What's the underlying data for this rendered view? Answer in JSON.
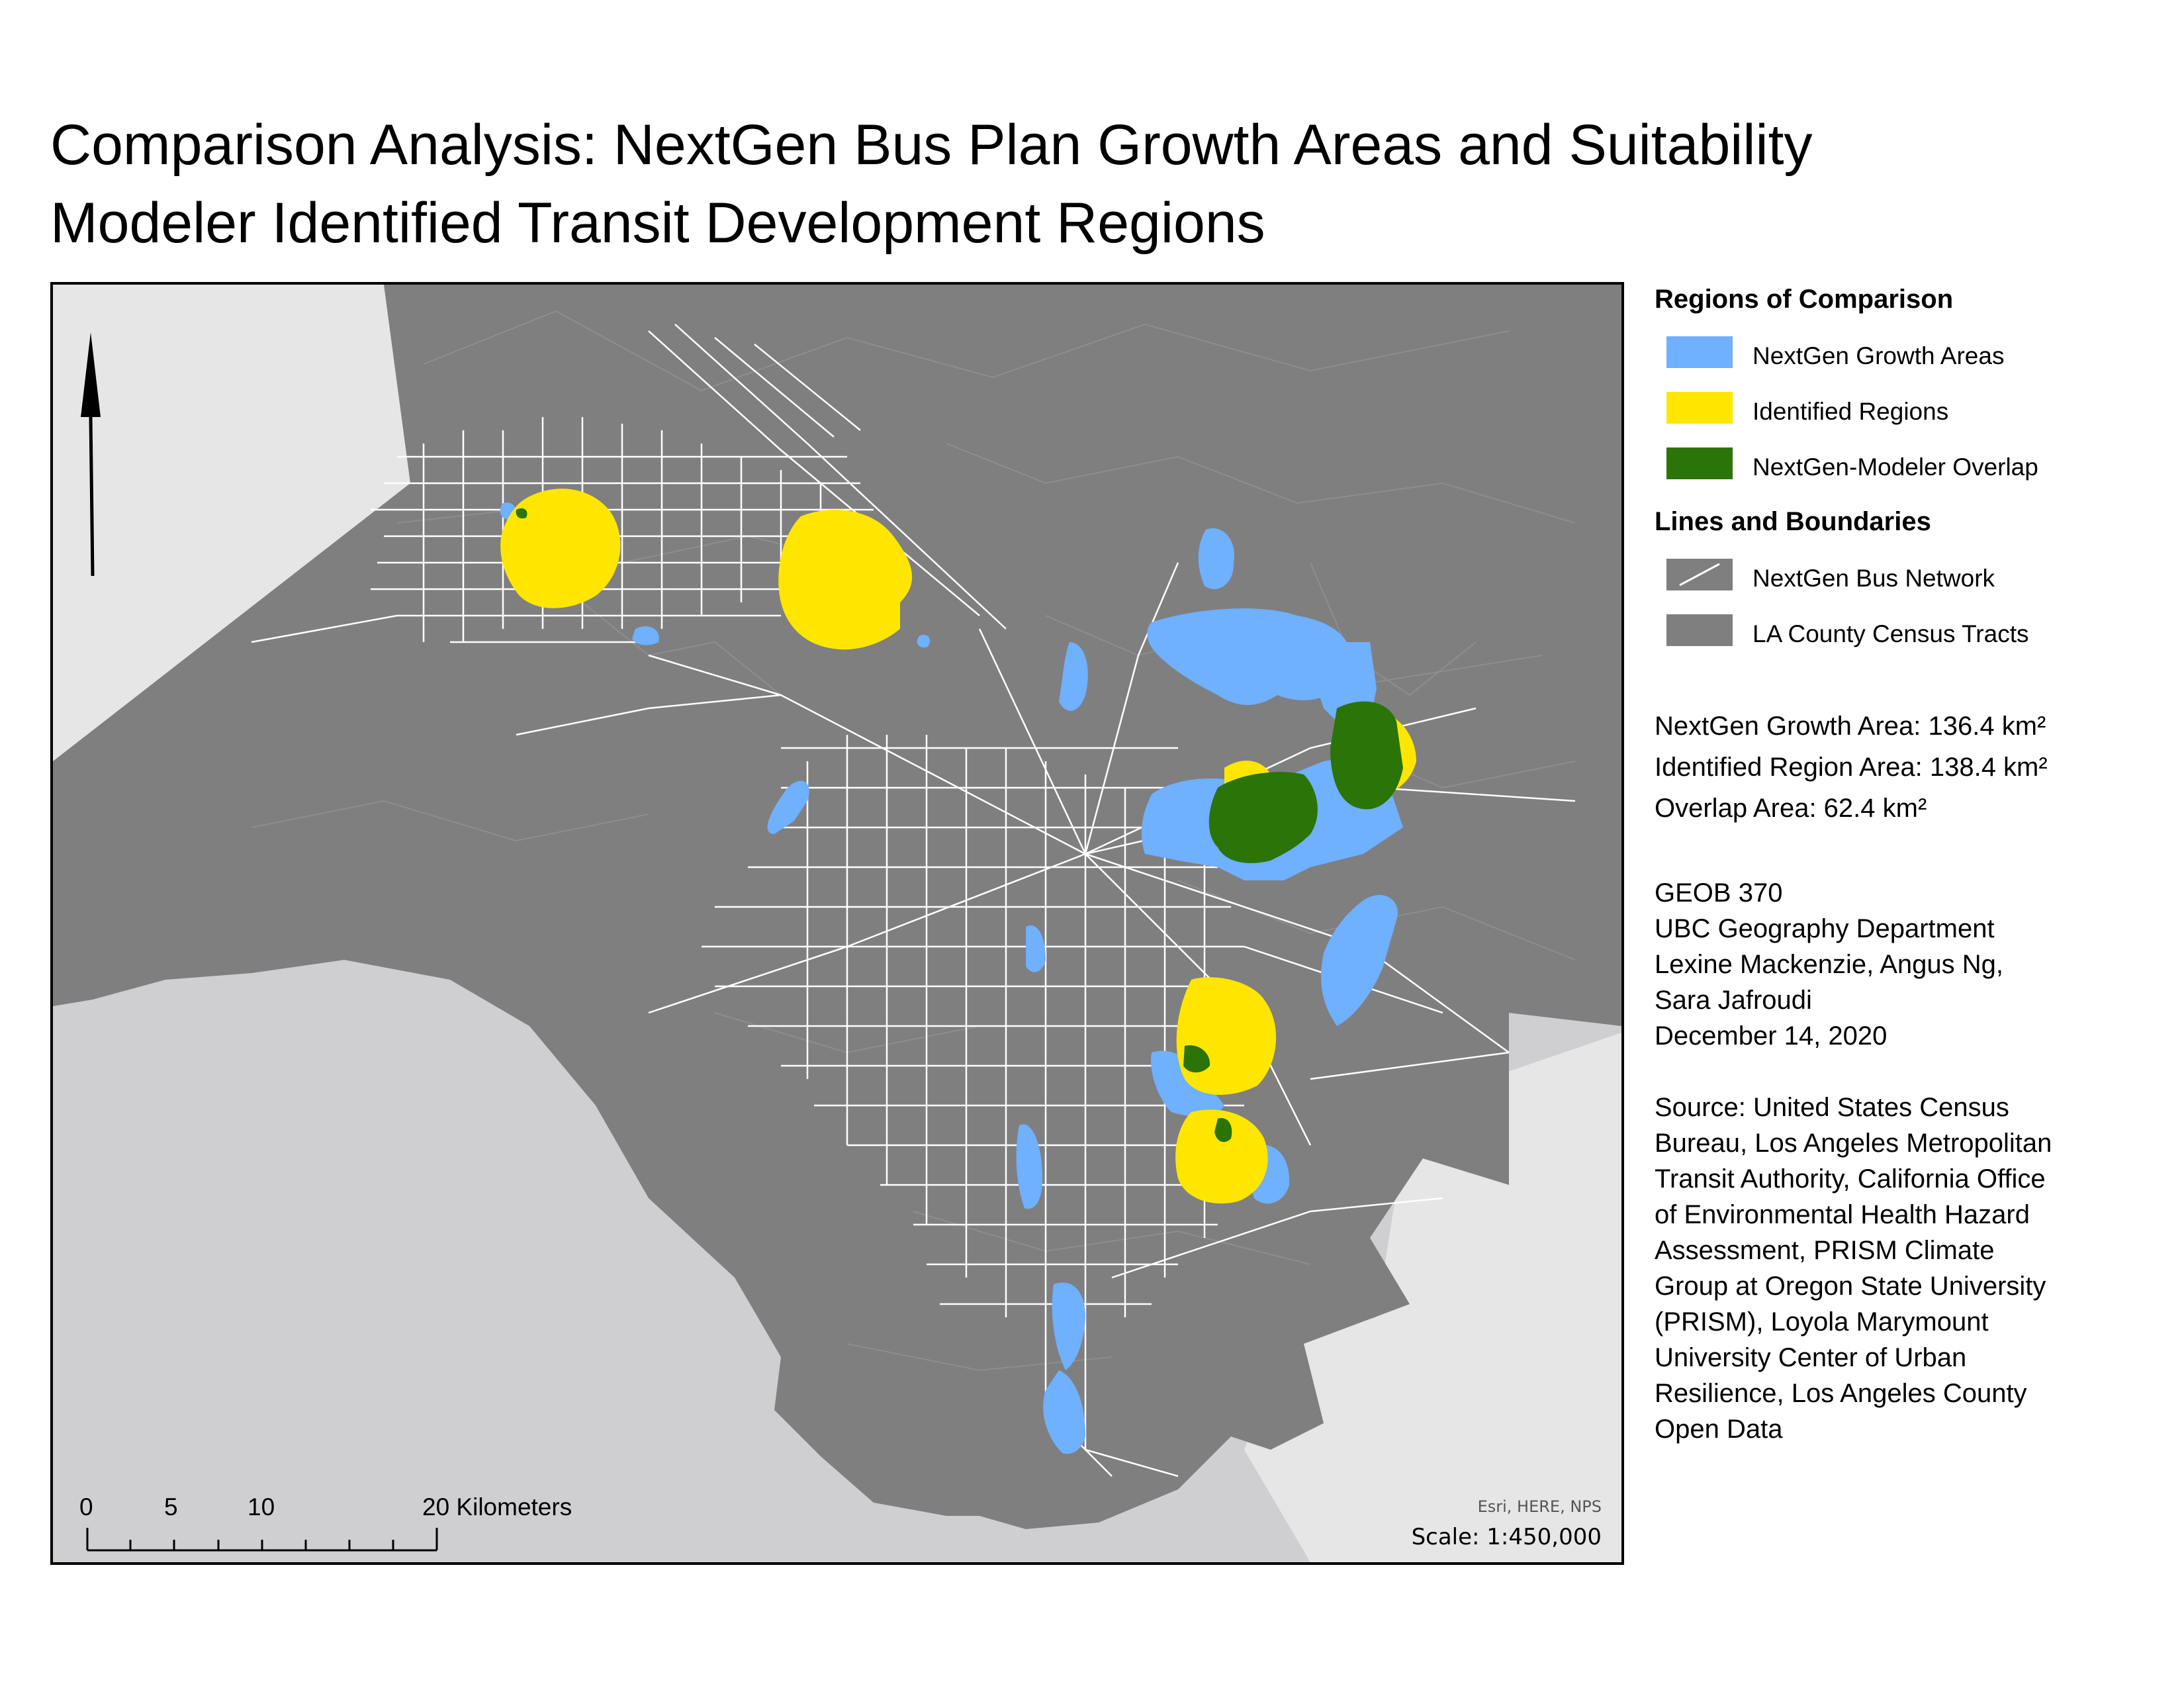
{
  "title": {
    "line1": "Comparison Analysis: NextGen Bus Plan Growth Areas and Suitability",
    "line2": "Modeler Identified Transit Development Regions"
  },
  "colors": {
    "nextgen_growth": "#6fb0ff",
    "identified": "#ffe600",
    "overlap": "#2a7408",
    "tracts": "#7f7f7f",
    "bus_network": "#ffffff",
    "ocean": "#cfcfd2",
    "land_outside": "#e6e6e6"
  },
  "legend": {
    "regions_heading": "Regions of Comparison",
    "regions": [
      {
        "label": "NextGen Growth Areas",
        "color": "#6fb0ff"
      },
      {
        "label": "Identified Regions",
        "color": "#ffe600"
      },
      {
        "label": "NextGen-Modeler Overlap",
        "color": "#2a7408"
      }
    ],
    "lines_heading": "Lines and Boundaries",
    "lines": [
      {
        "label": "NextGen Bus Network",
        "icon": "white-line-on-gray"
      },
      {
        "label": "LA County Census Tracts",
        "icon": "gray-fill"
      }
    ]
  },
  "stats": {
    "growth_area": "NextGen Growth Area: 136.4 km²",
    "identified_area": "Identified Region Area: 138.4 km²",
    "overlap_area": "Overlap Area: 62.4 km²"
  },
  "credits": {
    "course": "GEOB 370",
    "department": "UBC Geography Department",
    "authors_line1": "Lexine Mackenzie, Angus Ng,",
    "authors_line2": "Sara Jafroudi",
    "date": "December 14, 2020"
  },
  "source_lines": [
    "Source: United States Census",
    "Bureau, Los Angeles Metropolitan",
    "Transit Authority, California Office",
    "of Environmental Health Hazard",
    "Assessment, PRISM Climate",
    "Group at Oregon State University",
    "(PRISM), Loyola Marymount",
    "University Center of Urban",
    "Resilience, Los Angeles County",
    "Open Data"
  ],
  "map": {
    "north_arrow": "north-arrow-icon",
    "scale_bar": {
      "ticks": [
        "0",
        "5",
        "10",
        "20 Kilometers"
      ]
    },
    "attribution": "Esri, HERE, NPS",
    "scale": "Scale: 1:450,000"
  }
}
